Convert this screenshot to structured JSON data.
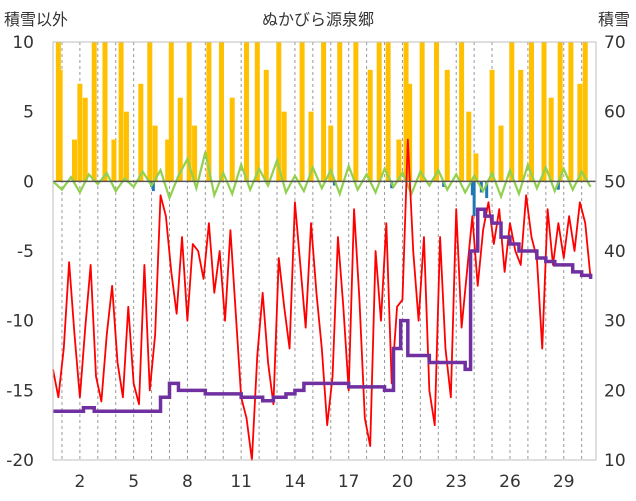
{
  "chart_data": {
    "type": "line",
    "title": "ぬかびら源泉郷",
    "ylabel_left": "積雪以外",
    "ylabel_right": "積雪",
    "ylim_left": [
      -20,
      10
    ],
    "ylim_right": [
      10,
      70
    ],
    "yticks_left": [
      "10",
      "5",
      "0",
      "-5",
      "-10",
      "-15",
      "-20"
    ],
    "yticks_right": [
      "70",
      "60",
      "50",
      "40",
      "30",
      "20",
      "10"
    ],
    "xticks": [
      "2",
      "5",
      "8",
      "11",
      "14",
      "17",
      "20",
      "23",
      "26",
      "29"
    ],
    "xlim": [
      0.5,
      30.8
    ],
    "grid": "vertical-dashed",
    "colors": {
      "precipitation": "#FFC000",
      "sunshine_negative": "#1F78B4",
      "wind": "#92D050",
      "temperature": "#FF0000",
      "snow_depth": "#7030A0"
    },
    "series": [
      {
        "type": "bar",
        "values": [
          [
            0.8,
            10
          ],
          [
            0.9,
            8
          ],
          [
            1.7,
            3
          ],
          [
            2.0,
            7
          ],
          [
            2.3,
            6
          ],
          [
            2.8,
            10
          ],
          [
            3.4,
            10
          ],
          [
            3.9,
            3
          ],
          [
            4.3,
            10
          ],
          [
            4.6,
            5
          ],
          [
            5.4,
            7
          ],
          [
            5.9,
            10
          ],
          [
            6.2,
            4
          ],
          [
            6.9,
            3
          ],
          [
            7.1,
            10
          ],
          [
            7.6,
            6
          ],
          [
            8.1,
            10
          ],
          [
            8.4,
            4
          ],
          [
            9.2,
            10
          ],
          [
            9.9,
            10
          ],
          [
            10.5,
            6
          ],
          [
            11.3,
            10
          ],
          [
            11.9,
            10
          ],
          [
            12.4,
            8
          ],
          [
            13.1,
            10
          ],
          [
            13.4,
            5
          ],
          [
            14.4,
            10
          ],
          [
            14.9,
            5
          ],
          [
            15.6,
            10
          ],
          [
            16.0,
            4
          ],
          [
            16.5,
            10
          ],
          [
            17.4,
            10
          ],
          [
            18.2,
            8
          ],
          [
            18.7,
            10
          ],
          [
            19.2,
            10
          ],
          [
            19.8,
            3
          ],
          [
            20.2,
            10
          ],
          [
            20.4,
            7
          ],
          [
            21.1,
            10
          ],
          [
            21.9,
            10
          ],
          [
            22.5,
            8
          ],
          [
            23.3,
            10
          ],
          [
            23.7,
            5
          ],
          [
            24.1,
            2
          ],
          [
            25.0,
            8
          ],
          [
            25.5,
            4
          ],
          [
            26.1,
            10
          ],
          [
            26.6,
            8
          ],
          [
            27.2,
            10
          ],
          [
            27.9,
            10
          ],
          [
            28.3,
            6
          ],
          [
            28.8,
            10
          ],
          [
            29.4,
            10
          ],
          [
            29.9,
            7
          ],
          [
            30.2,
            10
          ]
        ]
      },
      {
        "type": "bar",
        "values": [
          [
            6.0,
            -0.4
          ],
          [
            6.1,
            -0.7
          ],
          [
            16.2,
            -0.3
          ],
          [
            19.4,
            -0.5
          ],
          [
            22.3,
            -0.4
          ],
          [
            23.9,
            -1.0
          ],
          [
            24.0,
            -2.5
          ],
          [
            24.4,
            -0.8
          ],
          [
            24.7,
            -1.2
          ],
          [
            28.7,
            -0.6
          ]
        ]
      },
      {
        "type": "line",
        "x": [
          0.5,
          1.0,
          1.5,
          2.0,
          2.5,
          3.0,
          3.5,
          4.0,
          4.5,
          5.0,
          5.5,
          6.0,
          6.5,
          7.0,
          7.5,
          8.0,
          8.5,
          9.0,
          9.5,
          10.0,
          10.5,
          11.0,
          11.5,
          12.0,
          12.5,
          13.0,
          13.5,
          14.0,
          14.5,
          15.0,
          15.5,
          16.0,
          16.5,
          17.0,
          17.5,
          18.0,
          18.5,
          19.0,
          19.5,
          20.0,
          20.5,
          21.0,
          21.5,
          22.0,
          22.5,
          23.0,
          23.5,
          24.0,
          24.5,
          25.0,
          25.5,
          26.0,
          26.5,
          27.0,
          27.5,
          28.0,
          28.5,
          29.0,
          29.5,
          30.0,
          30.5
        ],
        "values": [
          0.0,
          -0.6,
          0.3,
          -0.8,
          0.5,
          -0.2,
          0.6,
          -0.7,
          0.2,
          -0.4,
          0.7,
          -0.3,
          0.8,
          -1.2,
          0.4,
          1.6,
          -0.5,
          2.1,
          -1.0,
          0.6,
          -0.9,
          1.2,
          -0.6,
          0.9,
          -0.3,
          1.5,
          -0.8,
          0.4,
          -0.7,
          1.0,
          -0.5,
          0.8,
          -0.9,
          1.1,
          -0.6,
          0.5,
          -0.8,
          0.9,
          -0.4,
          0.6,
          -0.9,
          0.7,
          -0.3,
          0.8,
          -0.6,
          0.5,
          -0.8,
          0.4,
          -0.7,
          0.6,
          -1.1,
          0.8,
          -0.9,
          1.2,
          -0.5,
          1.0,
          -0.7,
          0.9,
          -0.6,
          0.7,
          -0.4
        ]
      },
      {
        "type": "line",
        "x": [
          0.5,
          0.8,
          1.1,
          1.4,
          1.7,
          2.0,
          2.3,
          2.6,
          2.9,
          3.2,
          3.5,
          3.8,
          4.1,
          4.4,
          4.7,
          5.0,
          5.3,
          5.6,
          5.9,
          6.2,
          6.5,
          6.8,
          7.1,
          7.4,
          7.7,
          8.0,
          8.3,
          8.6,
          8.9,
          9.2,
          9.5,
          9.8,
          10.1,
          10.4,
          10.7,
          11.0,
          11.3,
          11.6,
          11.9,
          12.2,
          12.5,
          12.8,
          13.1,
          13.4,
          13.7,
          14.0,
          14.3,
          14.6,
          14.9,
          15.2,
          15.5,
          15.8,
          16.1,
          16.4,
          16.7,
          17.0,
          17.3,
          17.6,
          17.9,
          18.2,
          18.5,
          18.8,
          19.1,
          19.4,
          19.7,
          20.0,
          20.3,
          20.6,
          20.9,
          21.2,
          21.5,
          21.8,
          22.1,
          22.4,
          22.7,
          23.0,
          23.3,
          23.6,
          23.9,
          24.2,
          24.5,
          24.8,
          25.1,
          25.4,
          25.7,
          26.0,
          26.3,
          26.6,
          26.9,
          27.2,
          27.5,
          27.8,
          28.1,
          28.4,
          28.7,
          29.0,
          29.3,
          29.6,
          29.9,
          30.2,
          30.5
        ],
        "values": [
          -13.5,
          -15.5,
          -12.0,
          -5.8,
          -11.0,
          -15.5,
          -10.5,
          -6.0,
          -14.0,
          -15.8,
          -11.0,
          -7.5,
          -13.0,
          -15.5,
          -9.0,
          -14.5,
          -16.0,
          -6.0,
          -15.0,
          -11.0,
          -1.0,
          -2.5,
          -6.5,
          -9.5,
          -4.0,
          -10.0,
          -4.5,
          -5.0,
          -7.0,
          -3.0,
          -8.0,
          -5.0,
          -10.0,
          -3.5,
          -9.5,
          -15.5,
          -17.0,
          -20.0,
          -12.5,
          -8.0,
          -13.0,
          -16.0,
          -5.5,
          -9.0,
          -12.0,
          -1.5,
          -6.0,
          -10.5,
          -3.0,
          -8.0,
          -12.0,
          -17.5,
          -14.0,
          -4.0,
          -9.0,
          -15.0,
          -2.0,
          -8.5,
          -17.0,
          -19.0,
          -5.0,
          -10.0,
          -3.0,
          -14.5,
          -9.0,
          -8.5,
          3.0,
          -5.0,
          -10.0,
          -4.0,
          -15.0,
          -17.5,
          -4.0,
          -12.0,
          -15.5,
          -2.0,
          -10.5,
          -6.5,
          -2.5,
          -7.5,
          -3.5,
          -1.5,
          -4.5,
          -2.0,
          -6.5,
          -3.0,
          -5.0,
          -6.0,
          -1.0,
          -4.0,
          -5.5,
          -12.0,
          -2.0,
          -6.0,
          -3.0,
          -5.5,
          -2.5,
          -5.0,
          -1.5,
          -3.0,
          -7.0
        ]
      },
      {
        "type": "line",
        "axis": "right",
        "step": true,
        "x": [
          0.5,
          1.4,
          2.2,
          2.8,
          3.5,
          4.5,
          5.5,
          6.5,
          7.0,
          7.5,
          8.5,
          9.0,
          9.5,
          10.0,
          10.5,
          11.0,
          11.5,
          12.2,
          12.8,
          13.5,
          14.0,
          14.5,
          15.0,
          16.0,
          17.0,
          18.0,
          18.5,
          19.0,
          19.5,
          19.9,
          20.3,
          20.8,
          21.5,
          22.0,
          22.5,
          23.0,
          23.5,
          23.8,
          24.2,
          24.6,
          25.0,
          25.5,
          26.0,
          26.5,
          27.0,
          27.5,
          28.0,
          28.5,
          29.0,
          29.5,
          30.0,
          30.5
        ],
        "values": [
          17,
          17,
          17.5,
          17,
          17,
          17,
          17,
          19,
          21,
          20,
          20,
          19.5,
          19.5,
          19.5,
          19.5,
          19,
          19,
          18.5,
          19,
          19.5,
          20,
          21,
          21,
          21,
          20.5,
          20.5,
          20.5,
          20,
          26,
          30,
          25,
          25,
          24,
          24,
          24,
          24,
          23,
          40,
          46,
          45,
          44,
          42,
          41,
          40,
          40,
          39,
          38.5,
          38,
          38,
          37,
          36.5,
          36
        ]
      }
    ]
  }
}
